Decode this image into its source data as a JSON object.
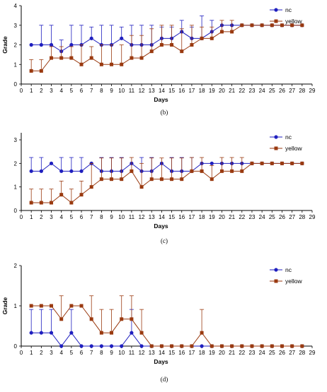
{
  "figure": {
    "captions": [
      "(b)",
      "(c)",
      "(d)"
    ]
  },
  "colors": {
    "nc": "#1f1fbf",
    "yellow": "#9a3a10",
    "axis": "#000000"
  },
  "chart_data": [
    {
      "type": "line",
      "caption": "(b)",
      "xlabel": "Days",
      "ylabel": "Grade",
      "x_ticks": [
        0,
        1,
        2,
        3,
        4,
        5,
        6,
        7,
        8,
        9,
        10,
        11,
        12,
        13,
        14,
        15,
        16,
        17,
        18,
        19,
        20,
        21,
        22,
        23,
        24,
        25,
        26,
        27,
        28,
        29
      ],
      "y_ticks": [
        0,
        1,
        2,
        3,
        4
      ],
      "xlim": [
        0,
        29
      ],
      "ylim": [
        0,
        4
      ],
      "legend_position": "top-right",
      "x": [
        1,
        2,
        3,
        4,
        5,
        6,
        7,
        8,
        9,
        10,
        11,
        12,
        13,
        14,
        15,
        16,
        17,
        18,
        19,
        20,
        21,
        22,
        23,
        24,
        25,
        26,
        27,
        28
      ],
      "series": [
        {
          "name": "nc",
          "marker": "circle",
          "values": [
            2,
            2,
            2,
            1.67,
            2,
            2,
            2.33,
            2,
            2,
            2.33,
            2,
            2,
            2,
            2.33,
            2.33,
            2.67,
            2.33,
            2.33,
            2.67,
            3,
            3,
            3,
            3,
            3,
            3,
            3,
            3,
            3
          ],
          "error_up": [
            0,
            1,
            1,
            0.58,
            1,
            1,
            0.58,
            1,
            1,
            0.58,
            1,
            1,
            1,
            0.58,
            0.58,
            0.58,
            0.58,
            1.15,
            0.58,
            0,
            0,
            0,
            0,
            0,
            0,
            0,
            0,
            0
          ]
        },
        {
          "name": "yellow",
          "marker": "square",
          "values": [
            0.67,
            0.67,
            1.33,
            1.33,
            1.33,
            1,
            1.33,
            1,
            1,
            1,
            1.33,
            1.33,
            1.67,
            2,
            2,
            1.67,
            2,
            2.33,
            2.33,
            2.67,
            2.67,
            3,
            3,
            3,
            3,
            3,
            3,
            3
          ],
          "error_up": [
            0.58,
            0.58,
            0.58,
            0.58,
            0.58,
            1,
            0.58,
            1,
            1,
            1,
            1.15,
            1.15,
            1.15,
            1,
            1,
            1.15,
            1,
            0.58,
            0.58,
            0.58,
            0.58,
            0,
            0,
            0,
            0,
            0,
            0,
            0
          ]
        }
      ]
    },
    {
      "type": "line",
      "caption": "(c)",
      "xlabel": "Days",
      "ylabel": "",
      "x_ticks": [
        0,
        1,
        2,
        3,
        4,
        5,
        6,
        7,
        8,
        9,
        10,
        11,
        12,
        13,
        14,
        15,
        16,
        17,
        18,
        19,
        20,
        21,
        22,
        23,
        24,
        25,
        26,
        27,
        28,
        29
      ],
      "y_ticks": [
        0,
        1,
        2,
        3
      ],
      "xlim": [
        0,
        29
      ],
      "ylim": [
        0,
        3.3
      ],
      "legend_position": "top-right",
      "x": [
        1,
        2,
        3,
        4,
        5,
        6,
        7,
        8,
        9,
        10,
        11,
        12,
        13,
        14,
        15,
        16,
        17,
        18,
        19,
        20,
        21,
        22,
        23,
        24,
        25,
        26,
        27,
        28
      ],
      "series": [
        {
          "name": "nc",
          "marker": "circle",
          "values": [
            1.67,
            1.67,
            2,
            1.67,
            1.67,
            1.67,
            2,
            1.67,
            1.67,
            1.67,
            2,
            1.67,
            1.67,
            2,
            1.67,
            1.67,
            1.67,
            2,
            2,
            2,
            2,
            2,
            2,
            2,
            2,
            2,
            2,
            2
          ],
          "error_up": [
            0.58,
            0.58,
            0,
            0.58,
            0.58,
            0.58,
            0,
            0.58,
            0.58,
            0.58,
            0,
            0.58,
            0.58,
            0,
            0.58,
            0.58,
            0.58,
            0,
            0,
            0,
            0,
            0,
            0,
            0,
            0,
            0,
            0,
            0
          ]
        },
        {
          "name": "yellow",
          "marker": "square",
          "values": [
            0.33,
            0.33,
            0.33,
            0.67,
            0.33,
            0.67,
            1,
            1.33,
            1.33,
            1.33,
            1.67,
            1,
            1.33,
            1.33,
            1.33,
            1.33,
            1.67,
            1.67,
            1.33,
            1.67,
            1.67,
            1.67,
            2,
            2,
            2,
            2,
            2,
            2
          ],
          "error_up": [
            0.58,
            0.58,
            0.58,
            0.58,
            0.58,
            0.58,
            1,
            0.9,
            0.9,
            0.9,
            0.58,
            1,
            0.9,
            0.9,
            0.9,
            0.9,
            0.58,
            0.58,
            0.58,
            0.58,
            0.58,
            0.58,
            0,
            0,
            0,
            0,
            0,
            0
          ]
        }
      ]
    },
    {
      "type": "line",
      "caption": "(d)",
      "xlabel": "Days",
      "ylabel": "Grade",
      "x_ticks": [
        0,
        1,
        2,
        3,
        4,
        5,
        6,
        7,
        8,
        9,
        10,
        11,
        12,
        13,
        14,
        15,
        16,
        17,
        18,
        19,
        20,
        21,
        22,
        23,
        24,
        25,
        26,
        27,
        28,
        29
      ],
      "y_ticks": [
        0,
        1,
        2
      ],
      "xlim": [
        0,
        29
      ],
      "ylim": [
        0,
        2
      ],
      "legend_position": "top-right",
      "x": [
        1,
        2,
        3,
        4,
        5,
        6,
        7,
        8,
        9,
        10,
        11,
        12,
        13,
        14,
        15,
        16,
        17,
        18,
        19,
        20,
        21,
        22,
        23,
        24,
        25,
        26,
        27,
        28
      ],
      "series": [
        {
          "name": "nc",
          "marker": "circle",
          "values": [
            0.33,
            0.33,
            0.33,
            0,
            0.33,
            0,
            0,
            0,
            0,
            0,
            0.33,
            0,
            0,
            0,
            0,
            0,
            0,
            0,
            0,
            0,
            0,
            0,
            0,
            0,
            0,
            0,
            0,
            0
          ],
          "error_up": [
            0.58,
            0.58,
            0.58,
            0,
            0.58,
            0,
            0,
            0,
            0,
            0,
            0.58,
            0,
            0,
            0,
            0,
            0,
            0,
            0,
            0,
            0,
            0,
            0,
            0,
            0,
            0,
            0,
            0,
            0
          ]
        },
        {
          "name": "yellow",
          "marker": "square",
          "values": [
            1,
            1,
            1,
            0.67,
            1,
            1,
            0.67,
            0.33,
            0.33,
            0.67,
            0.67,
            0.33,
            0,
            0,
            0,
            0,
            0,
            0.33,
            0,
            0,
            0,
            0,
            0,
            0,
            0,
            0,
            0,
            0
          ],
          "error_up": [
            0,
            0,
            0,
            0.58,
            0,
            0,
            0.58,
            0.58,
            0.58,
            0.58,
            0.58,
            0.58,
            0,
            0,
            0,
            0,
            0,
            0.58,
            0,
            0,
            0,
            0,
            0,
            0,
            0,
            0,
            0,
            0
          ]
        }
      ]
    }
  ]
}
